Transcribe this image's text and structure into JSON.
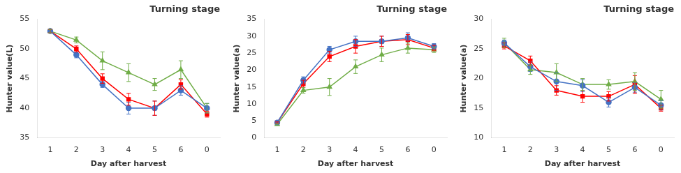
{
  "chart_data": [
    {
      "type": "line",
      "title": "Turning stage",
      "xlabel": "Day after harvest",
      "ylabel": "Hunter value(L)",
      "categories": [
        "1",
        "2",
        "3",
        "4",
        "5",
        "6",
        "0"
      ],
      "ylim": [
        35,
        55
      ],
      "yticks": [
        35,
        40,
        45,
        50,
        55
      ],
      "grid": false,
      "series": [
        {
          "color": "#4472C4",
          "marker": "circle",
          "line_style": "solid",
          "values": [
            53.0,
            49.0,
            44.0,
            40.0,
            40.0,
            43.0,
            40.0
          ],
          "err": [
            0.3,
            0.5,
            0.5,
            1.0,
            1.2,
            0.8,
            0.8
          ]
        },
        {
          "color": "#FF0000",
          "marker": "square",
          "line_style": "solid",
          "values": [
            53.0,
            50.0,
            45.0,
            41.5,
            40.0,
            44.0,
            39.0
          ],
          "err": [
            0.3,
            0.5,
            0.8,
            1.0,
            1.2,
            0.8,
            0.5
          ]
        },
        {
          "color": "#70AD47",
          "marker": "triangle",
          "line_style": "solid",
          "values": [
            53.0,
            51.5,
            48.0,
            46.0,
            44.0,
            46.5,
            40.0
          ],
          "err": [
            0.3,
            0.5,
            1.5,
            1.5,
            1.0,
            1.5,
            0.8
          ]
        }
      ]
    },
    {
      "type": "line",
      "title": "Turning stage",
      "xlabel": "Day after harvest",
      "ylabel": "Hunter value(a)",
      "categories": [
        "1",
        "2",
        "3",
        "4",
        "5",
        "6",
        "0"
      ],
      "ylim": [
        0,
        35
      ],
      "yticks": [
        0,
        5,
        10,
        15,
        20,
        25,
        30,
        35
      ],
      "grid": false,
      "series": [
        {
          "color": "#4472C4",
          "marker": "circle",
          "line_style": "solid",
          "values": [
            4.5,
            17.0,
            26.0,
            28.5,
            28.5,
            29.5,
            27.0
          ],
          "err": [
            0.2,
            1.0,
            1.0,
            1.5,
            1.5,
            1.5,
            0.8
          ]
        },
        {
          "color": "#FF0000",
          "marker": "square",
          "line_style": "solid",
          "values": [
            4.5,
            16.0,
            24.0,
            27.0,
            28.5,
            29.0,
            26.5
          ],
          "err": [
            0.2,
            1.0,
            1.5,
            2.0,
            1.5,
            1.5,
            0.8
          ]
        },
        {
          "color": "#70AD47",
          "marker": "triangle",
          "line_style": "solid",
          "values": [
            4.0,
            14.0,
            15.0,
            21.0,
            24.5,
            26.5,
            26.0
          ],
          "err": [
            0.2,
            0.8,
            2.5,
            2.0,
            2.0,
            1.5,
            0.8
          ]
        }
      ]
    },
    {
      "type": "line",
      "title": "Turning stage",
      "xlabel": "Day after harvest",
      "ylabel": "Hunter value(a)",
      "categories": [
        "1",
        "2",
        "3",
        "4",
        "5",
        "6",
        "0"
      ],
      "ylim": [
        10,
        30
      ],
      "yticks": [
        10,
        15,
        20,
        25,
        30
      ],
      "grid": false,
      "series": [
        {
          "color": "#4472C4",
          "marker": "circle",
          "line_style": "solid",
          "values": [
            26.0,
            22.0,
            19.5,
            18.8,
            16.0,
            18.5,
            15.5
          ],
          "err": [
            0.5,
            0.8,
            1.5,
            1.0,
            0.8,
            0.8,
            0.8
          ]
        },
        {
          "color": "#FF0000",
          "marker": "square",
          "line_style": "solid",
          "values": [
            25.5,
            23.0,
            18.0,
            17.0,
            17.0,
            19.0,
            15.0
          ],
          "err": [
            0.5,
            0.8,
            0.8,
            1.0,
            0.8,
            1.5,
            0.5
          ]
        },
        {
          "color": "#70AD47",
          "marker": "triangle",
          "line_style": "solid",
          "values": [
            26.0,
            21.5,
            21.0,
            19.0,
            19.0,
            19.5,
            16.5
          ],
          "err": [
            0.8,
            0.8,
            1.5,
            1.0,
            0.8,
            1.5,
            1.5
          ]
        }
      ]
    }
  ]
}
